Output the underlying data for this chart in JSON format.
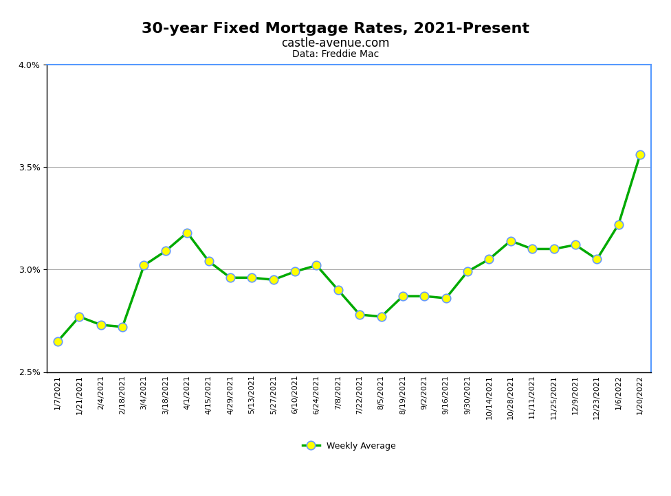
{
  "title": "30-year Fixed Mortgage Rates, 2021-Present",
  "subtitle1": "castle-avenue.com",
  "subtitle2": "Data: Freddie Mac",
  "legend_label": "Weekly Average",
  "dates": [
    "1/7/2021",
    "1/21/2021",
    "2/4/2021",
    "2/18/2021",
    "3/4/2021",
    "3/18/2021",
    "4/1/2021",
    "4/15/2021",
    "4/29/2021",
    "5/13/2021",
    "5/27/2021",
    "6/10/2021",
    "6/24/2021",
    "7/8/2021",
    "7/22/2021",
    "8/5/2021",
    "8/19/2021",
    "9/2/2021",
    "9/16/2021",
    "9/30/2021",
    "10/14/2021",
    "10/28/2021",
    "11/11/2021",
    "11/25/2021",
    "12/9/2021",
    "12/23/2021",
    "1/6/2022",
    "1/20/2022"
  ],
  "values": [
    2.65,
    2.77,
    2.73,
    2.72,
    3.02,
    3.09,
    3.18,
    3.04,
    2.96,
    2.96,
    2.95,
    2.99,
    3.02,
    2.9,
    2.78,
    2.77,
    2.87,
    2.87,
    2.86,
    2.99,
    3.05,
    3.14,
    3.1,
    3.1,
    3.12,
    3.05,
    3.22,
    3.56
  ],
  "ylim": [
    2.5,
    4.0
  ],
  "yticks": [
    2.5,
    3.0,
    3.5,
    4.0
  ],
  "line_color": "#00AA00",
  "marker_face_color": "#FFFF00",
  "marker_edge_color": "#6699FF",
  "marker_size": 9,
  "line_width": 2.5,
  "grid_color": "#AAAAAA",
  "top_border_color": "#5599FF",
  "background_color": "#FFFFFF",
  "outer_border_color": "#000000",
  "title_fontsize": 16,
  "subtitle1_fontsize": 12,
  "subtitle2_fontsize": 10
}
